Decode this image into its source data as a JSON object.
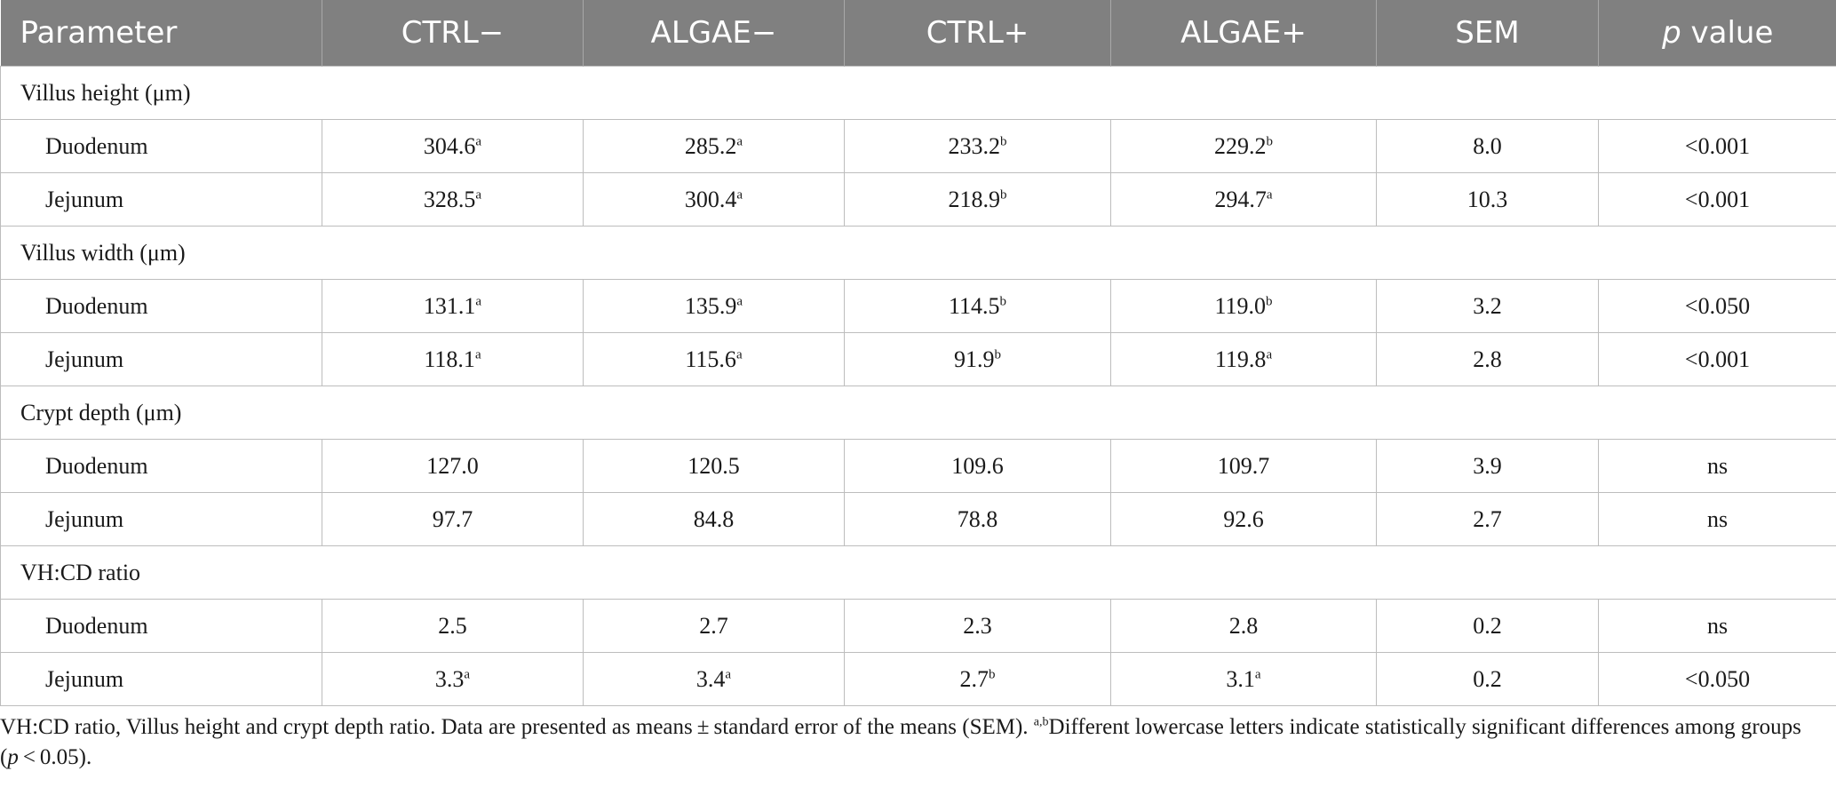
{
  "header": {
    "parameter": "Parameter",
    "ctrl_minus": "CTRL−",
    "algae_minus": "ALGAE−",
    "ctrl_plus": "CTRL+",
    "algae_plus": "ALGAE+",
    "sem": "SEM",
    "p_italic": "p",
    "p_rest": " value"
  },
  "groups": [
    {
      "label": "Villus height (μm)",
      "rows": [
        {
          "label": "Duodenum",
          "v": [
            "304.6",
            "285.2",
            "233.2",
            "229.2"
          ],
          "s": [
            "a",
            "a",
            "b",
            "b"
          ],
          "sem": "8.0",
          "p": "<0.001"
        },
        {
          "label": "Jejunum",
          "v": [
            "328.5",
            "300.4",
            "218.9",
            "294.7"
          ],
          "s": [
            "a",
            "a",
            "b",
            "a"
          ],
          "sem": "10.3",
          "p": "<0.001"
        }
      ]
    },
    {
      "label": "Villus width (μm)",
      "rows": [
        {
          "label": "Duodenum",
          "v": [
            "131.1",
            "135.9",
            "114.5",
            "119.0"
          ],
          "s": [
            "a",
            "a",
            "b",
            "b"
          ],
          "sem": "3.2",
          "p": "<0.050"
        },
        {
          "label": "Jejunum",
          "v": [
            "118.1",
            "115.6",
            "91.9",
            "119.8"
          ],
          "s": [
            "a",
            "a",
            "b",
            "a"
          ],
          "sem": "2.8",
          "p": "<0.001"
        }
      ]
    },
    {
      "label": "Crypt depth (μm)",
      "rows": [
        {
          "label": "Duodenum",
          "v": [
            "127.0",
            "120.5",
            "109.6",
            "109.7"
          ],
          "s": [
            "",
            "",
            "",
            ""
          ],
          "sem": "3.9",
          "p": "ns"
        },
        {
          "label": "Jejunum",
          "v": [
            "97.7",
            "84.8",
            "78.8",
            "92.6"
          ],
          "s": [
            "",
            "",
            "",
            ""
          ],
          "sem": "2.7",
          "p": "ns"
        }
      ]
    },
    {
      "label": "VH:CD ratio",
      "rows": [
        {
          "label": "Duodenum",
          "v": [
            "2.5",
            "2.7",
            "2.3",
            "2.8"
          ],
          "s": [
            "",
            "",
            "",
            ""
          ],
          "sem": "0.2",
          "p": "ns"
        },
        {
          "label": "Jejunum",
          "v": [
            "3.3",
            "3.4",
            "2.7",
            "3.1"
          ],
          "s": [
            "a",
            "a",
            "b",
            "a"
          ],
          "sem": "0.2",
          "p": "<0.050"
        }
      ]
    }
  ],
  "footnote": {
    "part1": "VH:CD ratio, Villus height and crypt depth ratio. Data are presented as means ± standard error of the means (SEM). ",
    "sup": "a,b",
    "part2": "Different lowercase letters indicate statistically significant differences among groups (",
    "p_italic": "p",
    "part3": " < 0.05)."
  }
}
